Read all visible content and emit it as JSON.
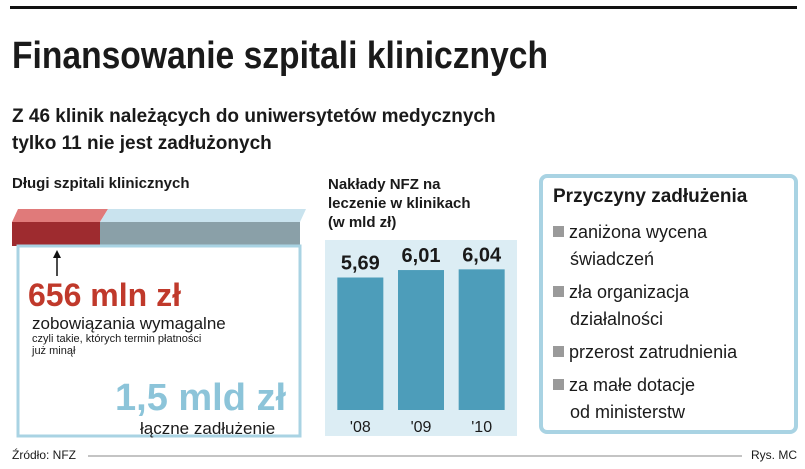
{
  "title": "Finansowanie szpitali klinicznych",
  "subtitle": [
    "Z 46 klinik należących do uniwersytetów medycznych",
    "tylko 11 nie jest zadłużonych"
  ],
  "debt": {
    "heading": "Długi szpitali klinicznych",
    "overdue": "656 mln zł",
    "overdue_label": "zobowiązania wymagalne",
    "overdue_note": [
      "czyli takie, których termin płatności",
      "już minął"
    ],
    "total": "1,5 mld zł",
    "total_label": "łączne zadłużenie"
  },
  "chart_data": {
    "type": "bar",
    "title": [
      "Nakłady NFZ na",
      "leczenie w klinikach",
      "(w mld zł)"
    ],
    "categories": [
      "'08",
      "'09",
      "'10"
    ],
    "values": [
      5.69,
      6.01,
      6.04
    ],
    "value_labels": [
      "5,69",
      "6,01",
      "6,04"
    ],
    "color": "#4d9dba",
    "ylim": [
      0,
      7
    ]
  },
  "reasons": {
    "heading": "Przyczyny zadłużenia",
    "items": [
      [
        "zaniżona wycena",
        "świadczeń"
      ],
      [
        "zła organizacja",
        "działalności"
      ],
      [
        "przerost zatrudnienia"
      ],
      [
        "za małe dotacje",
        "od ministerstw"
      ]
    ]
  },
  "footer": {
    "source": "Źródło: NFZ",
    "credit": "Rys. MC"
  }
}
